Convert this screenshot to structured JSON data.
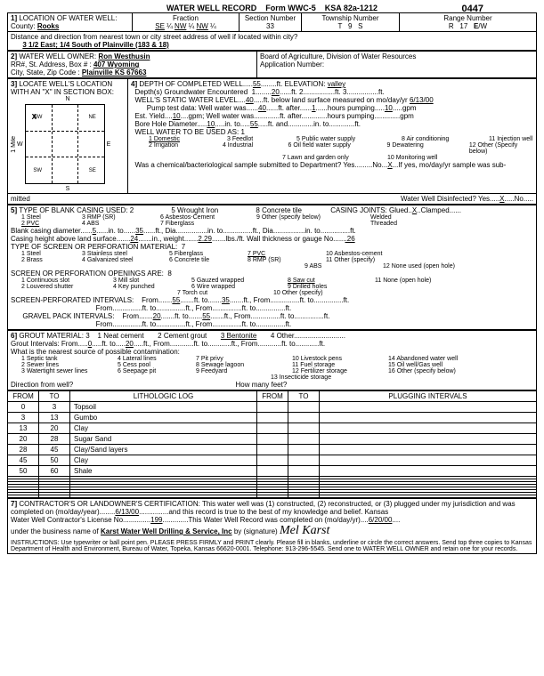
{
  "form": {
    "title": "WATER WELL RECORD",
    "form_id": "Form WWC-5",
    "ksa": "KSA 82a-1212",
    "doc_number": "0447"
  },
  "sec1": {
    "label": "LOCATION OF WATER WELL:",
    "county_label": "County:",
    "county": "Rooks",
    "fraction_label": "Fraction",
    "frac1a": "SE",
    "frac1b": "¼",
    "frac2a": "NW",
    "frac2b": "¼",
    "frac3a": "NW",
    "frac3b": "¼",
    "section_label": "Section Number",
    "section": "33",
    "township_label": "Township Number",
    "township_t": "T",
    "township": "9",
    "township_s": "S",
    "range_label": "Range Number",
    "range_r": "R",
    "range": "17",
    "range_ew": "E/W",
    "distance_label": "Distance and direction from nearest town or city street address of well if located within city?",
    "distance": "3 1/2 East; 1/4 South of Plainville (183 & 18)"
  },
  "sec2": {
    "label": "WATER WELL OWNER:",
    "owner": "Ron Westhusin",
    "addr_label": "RR#, St. Address, Box # :",
    "addr": "407 Wyoming",
    "city_label": "City, State, Zip Code :",
    "city": "Plainville KS 67663",
    "board": "Board of Agriculture, Division of Water Resources",
    "app_label": "Application Number:"
  },
  "sec3": {
    "label": "LOCATE WELL'S LOCATION WITH AN \"X\" IN SECTION BOX:",
    "n": "N",
    "s": "S",
    "e": "E",
    "w": "W",
    "nw": "NW",
    "ne": "NE",
    "sw": "SW",
    "se": "SE",
    "mile": "1 Mile"
  },
  "sec4": {
    "label": "DEPTH OF COMPLETED WELL",
    "depth": "55",
    "depth_unit": "ft.",
    "elev_label": "ELEVATION:",
    "elev": "valley",
    "gw_label": "Depth(s) Groundwater Encountered",
    "gw1_label": "1.",
    "gw1": "20",
    "gw1_unit": "ft.",
    "gw2_label": "2.",
    "gw2_unit": "ft.",
    "gw3_label": "3.",
    "gw3_unit": "ft.",
    "static_label": "WELL'S STATIC WATER LEVEL",
    "static": "40",
    "static_unit": "ft. below land surface measured on mo/day/yr",
    "static_date": "6/13/00",
    "pump_label": "Pump test data:  Well water was",
    "pump": "40",
    "pump_after": "ft. after",
    "pump_hrs": "1",
    "pump_hrs_unit": "hours pumping",
    "pump_gpm": "10",
    "pump_gpm_unit": "gpm",
    "yield_label": "Est. Yield",
    "yield": "10",
    "yield_unit": "gpm; Well water was",
    "yield_after": "ft. after",
    "yield_hrs_unit": "hours pumping",
    "yield_gpm_unit": "gpm",
    "bore_label": "Bore Hole Diameter",
    "bore": "10",
    "bore_unit": "in. to",
    "bore_to": "55",
    "bore_to_unit": "ft. and",
    "bore_and_unit": "in. to",
    "bore_ft": "ft.",
    "use_label": "WELL WATER TO BE USED AS:",
    "use1": "1 Domestic",
    "use2": "2 Irrigation",
    "use3": "3 Feedlot",
    "use4": "4 Industrial",
    "use5": "5 Public water supply",
    "use6": "6 Oil field water supply",
    "use7": "7 Lawn and garden only",
    "use8": "8 Air conditioning",
    "use9": "9 Dewatering",
    "use10": "10 Monitoring well",
    "use11": "11 Injection well",
    "use12": "12 Other (Specify below)",
    "bact_label": "Was a chemical/bacteriological sample submitted to Department? Yes",
    "bact_no": "No",
    "bact_val": "X",
    "bact_if": "If yes, mo/day/yr sample was sub-",
    "mitted": "mitted",
    "disinfect": "Water Well Disinfected?  Yes",
    "disinfect_val": "X",
    "disinfect_no": "No"
  },
  "sec5": {
    "label": "TYPE OF BLANK CASING USED:",
    "val": "2",
    "c1": "1 Steel",
    "c2": "2  PVC",
    "c3": "3 RMP (SR)",
    "c4": "4 ABS",
    "c5": "5 Wrought Iron",
    "c6": "6 Asbestos-Cement",
    "c7": "7 Fiberglass",
    "c8": "8 Concrete tile",
    "c9": "9 Other (specify below)",
    "joints_label": "CASING JOINTS:",
    "joints_glued": "Glued",
    "joints_val": "X",
    "joints_clamped": "Clamped",
    "joints_welded": "Welded",
    "joints_threaded": "Threaded",
    "diam_label": "Blank casing diameter",
    "diam": "5",
    "diam_unit": "in. to",
    "diam_to": "35",
    "diam_ft": "ft., Dia.",
    "diam_in": "in. to",
    "diam_ft2": "ft., Dia.",
    "diam_in2": "in. to",
    "diam_ft3": "ft.",
    "height_label": "Casing height above land surface",
    "height": "24",
    "height_unit": "in., weight",
    "weight": "2.29",
    "weight_unit": "lbs./ft.  Wall thickness or gauge No.",
    "gauge": ".26",
    "screen_label": "TYPE OF SCREEN OR PERFORATION MATERIAL:",
    "screen_val": "7",
    "s1": "1 Steel",
    "s2": "2 Brass",
    "s3": "3 Stainless steel",
    "s4": "4 Galvanized steel",
    "s5": "5 Fiberglass",
    "s6": "6 Concrete tile",
    "s7": "7 PVC",
    "s8": "8 RMP (SR)",
    "s9": "9 ABS",
    "s10": "10 Asbestos-cement",
    "s11": "11 Other (specify)",
    "s12": "12 None used (open hole)",
    "open_label": "SCREEN OR PERFORATION OPENINGS ARE:",
    "open_val": "8",
    "o1": "1 Continuous slot",
    "o2": "2 Louvered shutter",
    "o3": "3 Mill slot",
    "o4": "4 Key punched",
    "o5": "5 Gauzed wrapped",
    "o6": "6 Wire wrapped",
    "o7": "7 Torch cut",
    "o8": "8 Saw cut",
    "o9": "9 Drilled holes",
    "o10": "10 Other (specify)",
    "o11": "11 None (open hole)",
    "perf_label": "SCREEN-PERFORATED INTERVALS:",
    "from": "From",
    "to": "to",
    "perf_from1": "55",
    "perf_to1": "35",
    "ft": "ft.",
    "gravel_label": "GRAVEL PACK INTERVALS:",
    "gravel_from1": "20",
    "gravel_to1": "55"
  },
  "sec6": {
    "label": "GROUT MATERIAL:",
    "val": "3",
    "g1": "1 Neat cement",
    "g2": "2 Cement grout",
    "g3": "3 Bentonite",
    "g4": "4 Other",
    "grout_label": "Grout Intervals:  From",
    "grout_from": "0",
    "grout_to_label": "ft. to",
    "grout_to": "20",
    "grout_ft": "ft.,  From",
    "grout_ft2": "ft. to",
    "grout_ft3": "ft.,  From",
    "grout_ft4": "ft. to",
    "grout_ft5": "ft.",
    "contam_label": "What is the nearest source of possible contamination:",
    "p1": "1 Septic tank",
    "p2": "2 Sewer lines",
    "p3": "3 Watertight sewer lines",
    "p4": "4 Lateral lines",
    "p5": "5 Cess pool",
    "p6": "6 Seepage pit",
    "p7": "7 Pit privy",
    "p8": "8 Sewage lagoon",
    "p9": "9 Feedyard",
    "p10": "10 Livestock pens",
    "p11": "11 Fuel storage",
    "p12": "12 Fertilizer storage",
    "p13": "13 Insecticide storage",
    "p14": "14 Abandoned water well",
    "p15": "15 Oil well/Gas well",
    "p16": "16 Other (specify below)",
    "dir_label": "Direction from well?",
    "how_label": "How many feet?"
  },
  "lithlog": {
    "h_from": "FROM",
    "h_to": "TO",
    "h_log": "LITHOLOGIC LOG",
    "h_from2": "FROM",
    "h_to2": "TO",
    "h_plug": "PLUGGING INTERVALS",
    "rows": [
      {
        "from": "0",
        "to": "3",
        "desc": "Topsoil"
      },
      {
        "from": "3",
        "to": "13",
        "desc": "Gumbo"
      },
      {
        "from": "13",
        "to": "20",
        "desc": "Clay"
      },
      {
        "from": "20",
        "to": "28",
        "desc": "Sugar Sand"
      },
      {
        "from": "28",
        "to": "45",
        "desc": "Clay/Sand layers"
      },
      {
        "from": "45",
        "to": "50",
        "desc": "Clay"
      },
      {
        "from": "50",
        "to": "60",
        "desc": "Shale"
      }
    ]
  },
  "sec7": {
    "label": "CONTRACTOR'S OR LANDOWNER'S CERTIFICATION: This water well was (1) constructed, (2) reconstructed, or (3) plugged under my jurisdiction and was",
    "comp_label": "completed on (mo/day/year)",
    "comp_date": "6/13/00",
    "comp_rest": "and this record is true to the best of my knowledge and belief. Kansas",
    "lic_label": "Water Well Contractor's License No.",
    "lic": "199",
    "lic_rest": "This Water Well Record was completed on (mo/day/yr)",
    "lic_date": "6/20/00",
    "bus_label": "under the business name of",
    "bus": "Karst Water Well Drilling & Service, Inc",
    "sig_label": "by (signature)",
    "instructions": "INSTRUCTIONS: Use typewriter or ball point pen. PLEASE PRESS FIRMLY and PRINT clearly. Please fill in blanks, underline or circle the correct answers. Send top three copies to Kansas Department of Health and Environment, Bureau of Water, Topeka, Kansas 66620-0001. Telephone: 913-296-5545. Send one to WATER WELL OWNER and retain one for your records."
  }
}
